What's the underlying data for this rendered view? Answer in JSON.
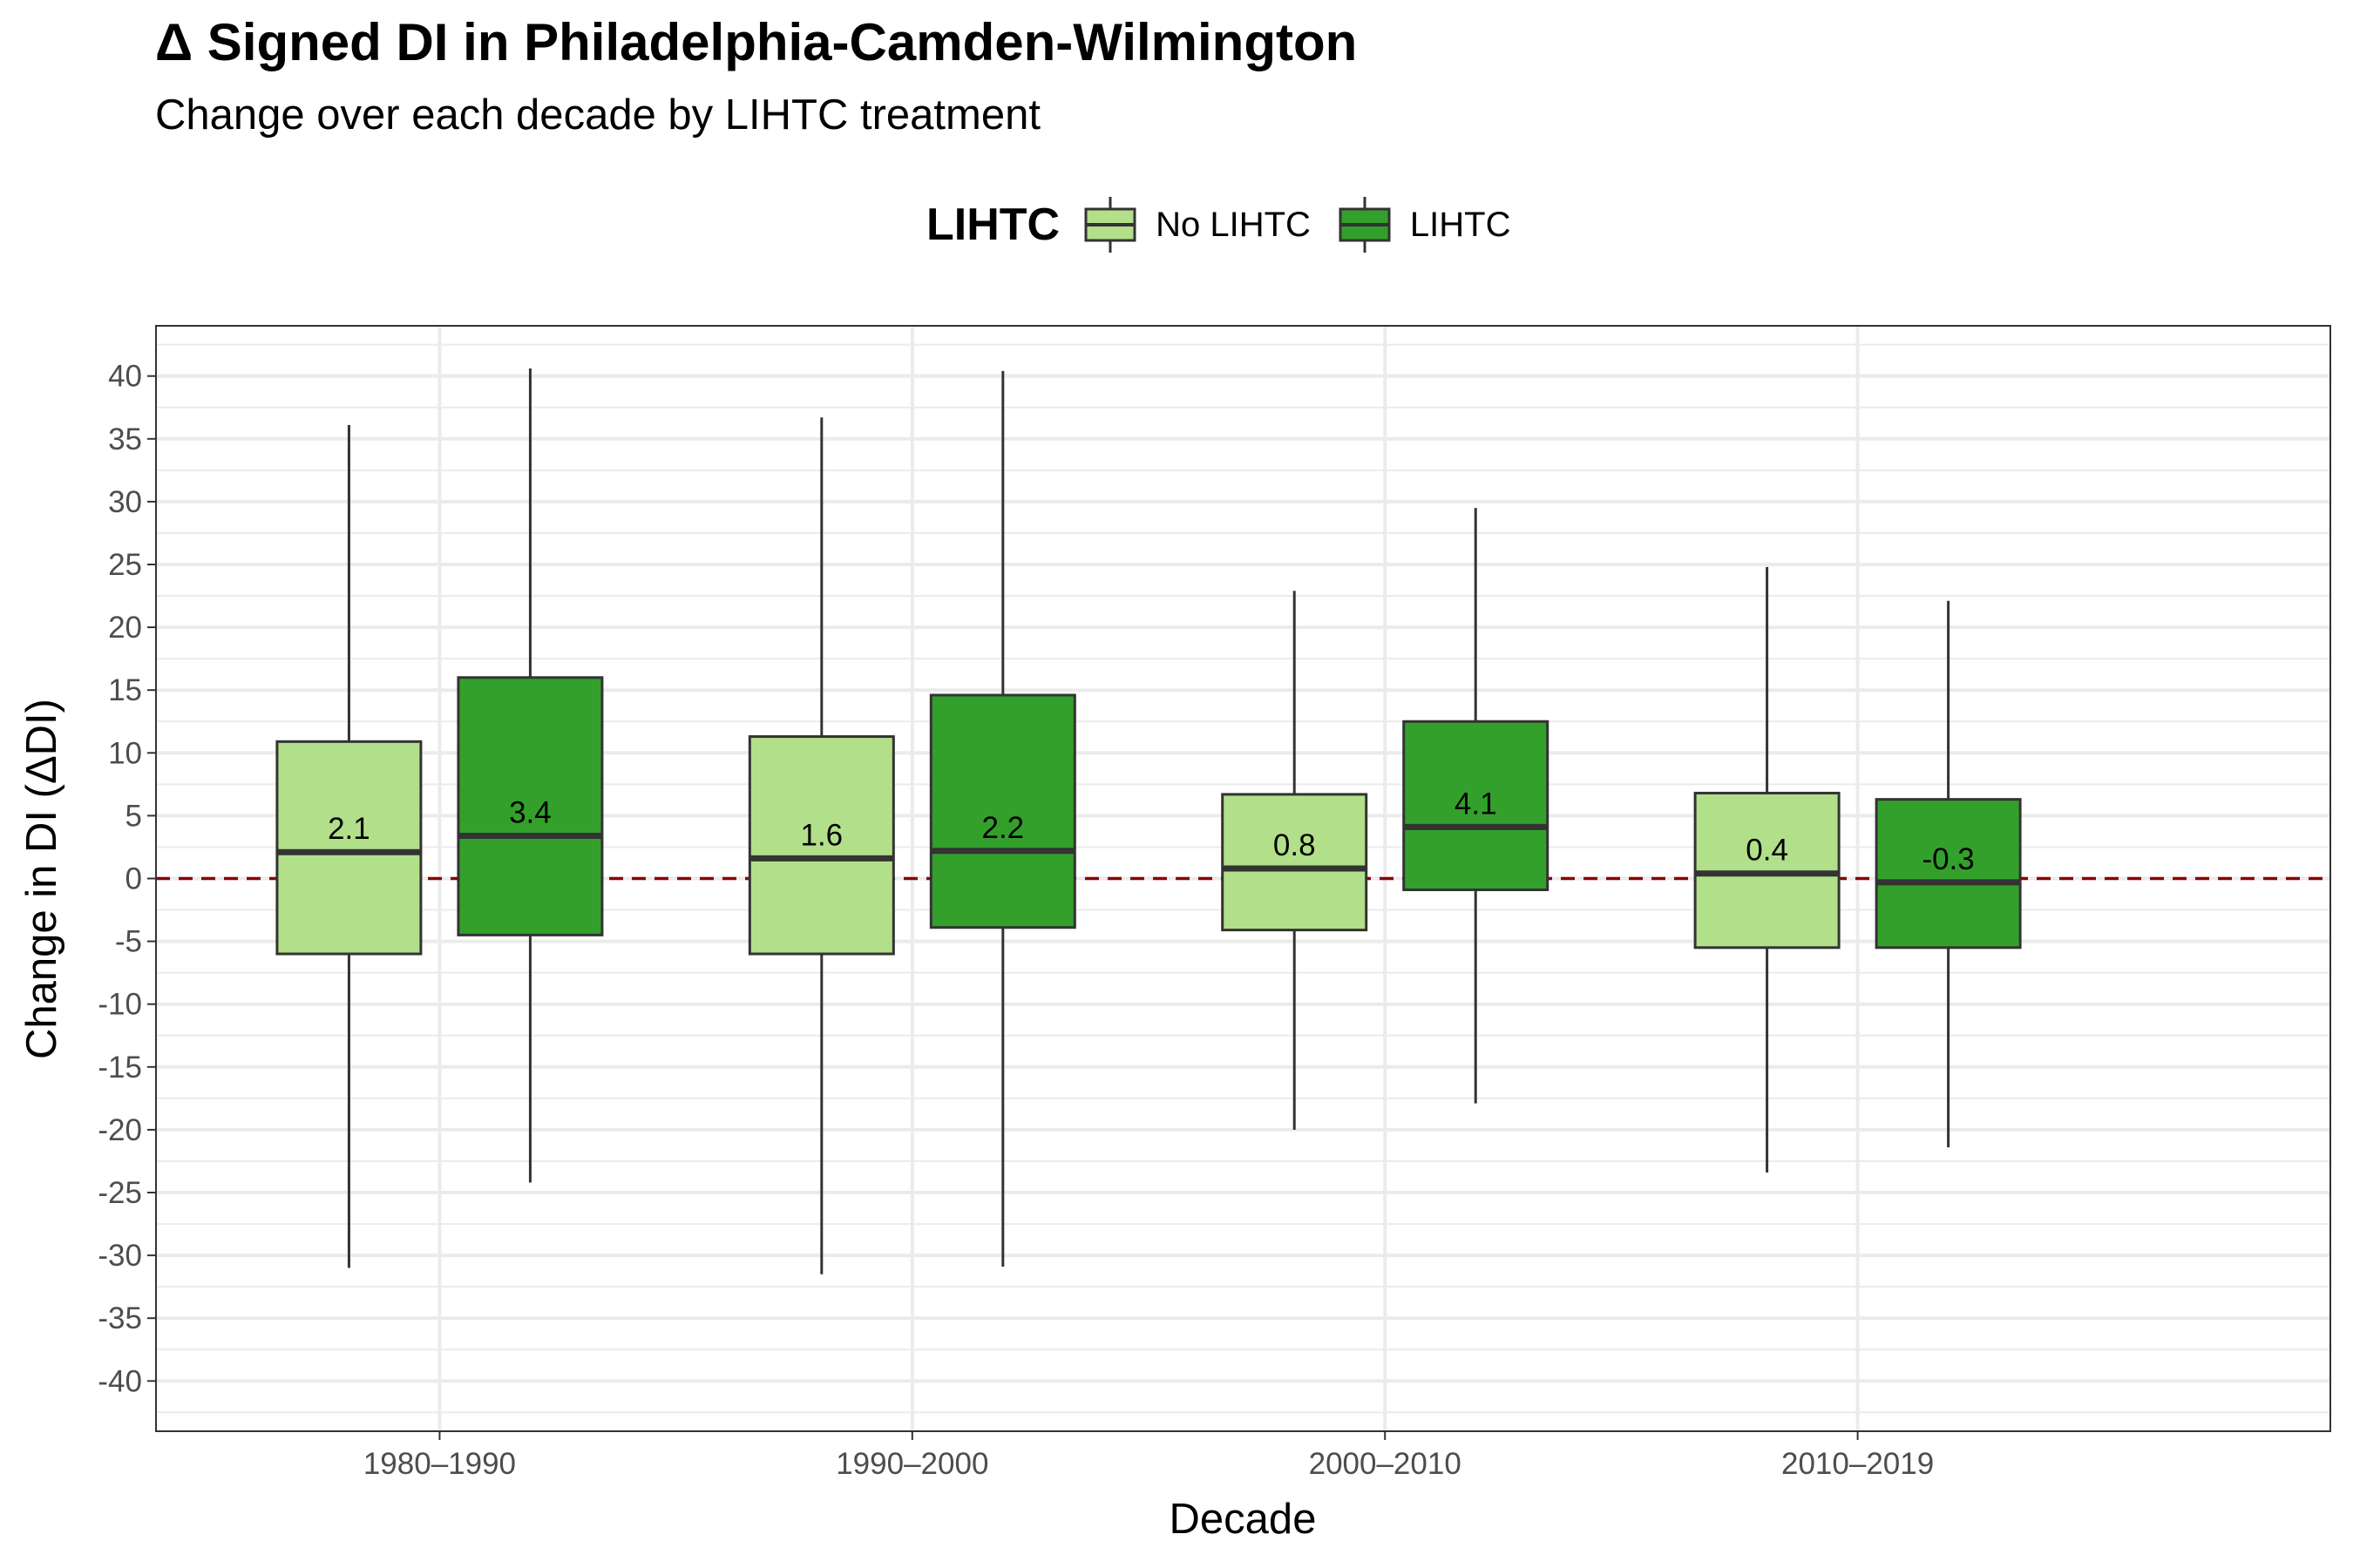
{
  "title": "Δ Signed DI in Philadelphia-Camden-Wilmington",
  "subtitle": "Change over each decade by LIHTC treatment",
  "legend": {
    "title": "LIHTC",
    "items": [
      {
        "label": "No LIHTC",
        "color": "#b2df8a"
      },
      {
        "label": "LIHTC",
        "color": "#33a02c"
      }
    ]
  },
  "colors": {
    "no_lihtc": "#b2df8a",
    "lihtc": "#33a02c",
    "box_stroke": "#333333",
    "reference_line": "#8b0000",
    "grid": "#ebebeb"
  },
  "chart_data": {
    "type": "boxplot",
    "xlabel": "Decade",
    "ylabel": "Change in DI (ΔDI)",
    "categories": [
      "1980–1990",
      "1990–2000",
      "2000–2010",
      "2010–2019"
    ],
    "ylim": [
      -44,
      44
    ],
    "yticks": [
      40,
      35,
      30,
      25,
      20,
      15,
      10,
      5,
      0,
      -5,
      -10,
      -15,
      -20,
      -25,
      -30,
      -35,
      -40
    ],
    "grid": true,
    "legend_position": "top",
    "reference_line": {
      "y": 0,
      "style": "dashed"
    },
    "series": [
      {
        "name": "No LIHTC",
        "color": "#b2df8a",
        "boxes": [
          {
            "whisker_low": -31,
            "q1": -6,
            "median": 2.1,
            "q3": 10.9,
            "whisker_high": 36.1,
            "label": "2.1"
          },
          {
            "whisker_low": -31.5,
            "q1": -6,
            "median": 1.6,
            "q3": 11.3,
            "whisker_high": 36.7,
            "label": "1.6"
          },
          {
            "whisker_low": -20,
            "q1": -4.1,
            "median": 0.8,
            "q3": 6.7,
            "whisker_high": 22.9,
            "label": "0.8"
          },
          {
            "whisker_low": -23.4,
            "q1": -5.5,
            "median": 0.4,
            "q3": 6.8,
            "whisker_high": 24.8,
            "label": "0.4"
          }
        ]
      },
      {
        "name": "LIHTC",
        "color": "#33a02c",
        "boxes": [
          {
            "whisker_low": -24.2,
            "q1": -4.5,
            "median": 3.4,
            "q3": 16,
            "whisker_high": 40.6,
            "label": "3.4"
          },
          {
            "whisker_low": -30.9,
            "q1": -3.9,
            "median": 2.2,
            "q3": 14.6,
            "whisker_high": 40.4,
            "label": "2.2"
          },
          {
            "whisker_low": -17.9,
            "q1": -0.9,
            "median": 4.1,
            "q3": 12.5,
            "whisker_high": 29.5,
            "label": "4.1"
          },
          {
            "whisker_low": -21.4,
            "q1": -5.5,
            "median": -0.3,
            "q3": 6.3,
            "whisker_high": 22.1,
            "label": "-0.3"
          }
        ]
      }
    ]
  }
}
